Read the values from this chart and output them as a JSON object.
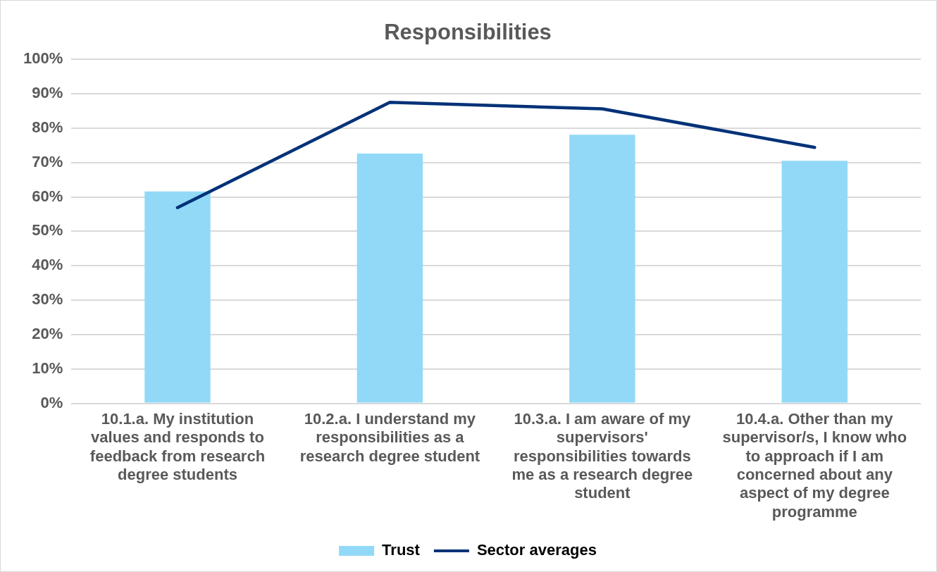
{
  "chart_data": {
    "type": "bar",
    "title": "Responsibilities",
    "categories": [
      "10.1.a. My institution values and responds to feedback from research degree students",
      "10.2.a. I understand my responsibilities as a research degree student",
      "10.3.a. I am aware of my supervisors' responsibilities towards me as a research degree student",
      "10.4.a. Other than my supervisor/s, I know who to approach if I am concerned about any aspect of my degree programme"
    ],
    "series": [
      {
        "name": "Trust",
        "color": "#92d9f8",
        "values": [
          61.6,
          72.6,
          78.1,
          70.5
        ]
      },
      {
        "name": "Sector averages",
        "type": "line",
        "color": "#033278",
        "values": [
          56.9,
          87.5,
          85.6,
          74.4
        ]
      }
    ],
    "ylim": [
      0,
      100
    ],
    "yticks": [
      {
        "value": 0,
        "label": "0%"
      },
      {
        "value": 10,
        "label": "10%"
      },
      {
        "value": 20,
        "label": "20%"
      },
      {
        "value": 30,
        "label": "30%"
      },
      {
        "value": 40,
        "label": "40%"
      },
      {
        "value": 50,
        "label": "50%"
      },
      {
        "value": 60,
        "label": "60%"
      },
      {
        "value": 70,
        "label": "70%"
      },
      {
        "value": 80,
        "label": "80%"
      },
      {
        "value": 90,
        "label": "90%"
      },
      {
        "value": 100,
        "label": "100%"
      }
    ],
    "grid": "y",
    "legend": "bottom",
    "marker": "none"
  }
}
